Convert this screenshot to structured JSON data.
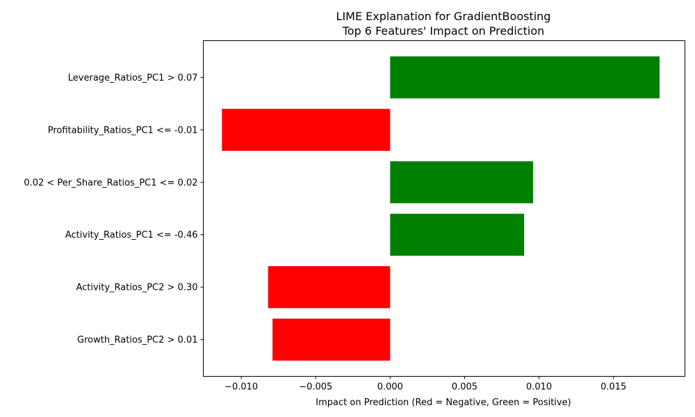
{
  "chart_data": {
    "type": "bar",
    "orientation": "horizontal",
    "title_line1": "LIME Explanation for GradientBoosting",
    "title_line2": "Top 6 Features' Impact on Prediction",
    "xlabel": "Impact on Prediction (Red = Negative, Green = Positive)",
    "ylabel": "",
    "xlim": [
      -0.01255,
      0.0198
    ],
    "x_ticks": [
      -0.01,
      -0.005,
      0.0,
      0.005,
      0.01,
      0.015
    ],
    "x_tick_labels": [
      "−0.010",
      "−0.005",
      "0.000",
      "0.005",
      "0.010",
      "0.015"
    ],
    "grid": false,
    "legend": "none",
    "categories": [
      "Leverage_Ratios_PC1 > 0.07",
      "Profitability_Ratios_PC1 <= -0.01",
      "0.02 < Per_Share_Ratios_PC1 <= 0.02",
      "Activity_Ratios_PC1 <= -0.46",
      "Activity_Ratios_PC2 > 0.30",
      "Growth_Ratios_PC2 > 0.01"
    ],
    "values": [
      0.0181,
      -0.0113,
      0.0096,
      0.009,
      -0.0082,
      -0.0079
    ],
    "colors": {
      "positive": "#008000",
      "negative": "#ff0000"
    }
  }
}
